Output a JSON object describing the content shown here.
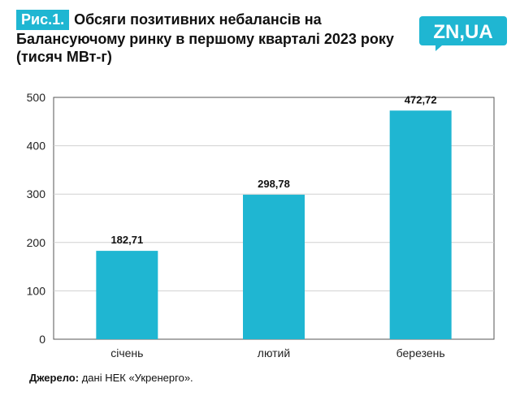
{
  "header": {
    "fig_label": "Рис.1.",
    "title": "Обсяги позитивних небалансів на Балансуючому ринку в першому кварталі 2023 року (тисяч МВт-г)"
  },
  "logo": {
    "text": "ZN,UA",
    "color": "#1fb6d2"
  },
  "source": {
    "label": "Джерело:",
    "text": "дані НЕК «Укренерго»."
  },
  "colors": {
    "bar": "#1fb6d2",
    "accent": "#1fb6d2",
    "grid": "#d0d0d0",
    "axis": "#555555"
  },
  "chart_data": {
    "type": "bar",
    "title": "Обсяги позитивних небалансів на Балансуючому ринку в першому кварталі 2023 року (тисяч МВт-г)",
    "categories": [
      "січень",
      "лютий",
      "березень"
    ],
    "values": [
      182.71,
      298.78,
      472.72
    ],
    "value_labels": [
      "182,71",
      "298,78",
      "472,72"
    ],
    "ylim": [
      0,
      500
    ],
    "yticks": [
      0,
      100,
      200,
      300,
      400,
      500
    ],
    "xlabel": "",
    "ylabel": "",
    "grid": true,
    "legend": "none"
  }
}
